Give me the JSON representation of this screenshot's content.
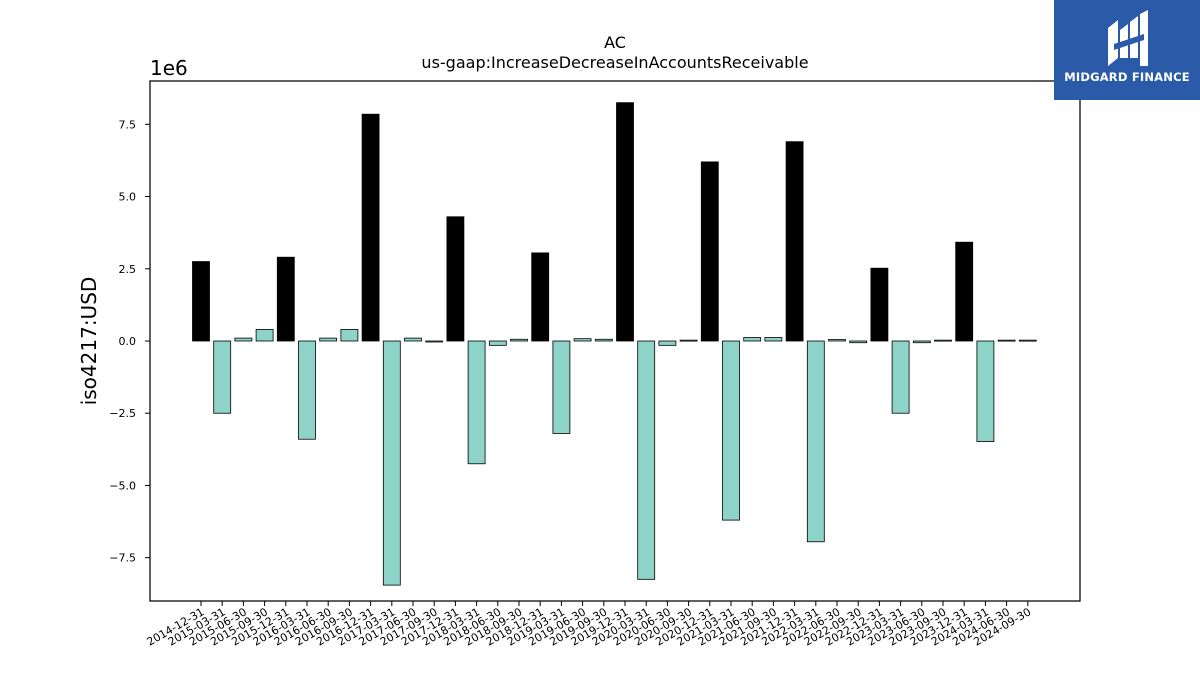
{
  "brand": {
    "logo_text": "MIDGARD FINANCE",
    "logo_icon": "midgard-m-mark",
    "background_color": "#2b5aa8"
  },
  "chart_data": {
    "type": "bar",
    "title": "AC",
    "subtitle": "us-gaap:IncreaseDecreaseInAccountsReceivable",
    "ylabel": "iso4217:USD",
    "xlabel": "",
    "scale_label": "1e6",
    "ylim": [
      -9000000,
      9000000
    ],
    "yticks": [
      -7500000,
      -5000000,
      -2500000,
      0,
      2500000,
      5000000,
      7500000
    ],
    "ytick_labels": [
      "−7.5",
      "−5.0",
      "−2.5",
      "0.0",
      "2.5",
      "5.0",
      "7.5"
    ],
    "grid": false,
    "legend": "none",
    "colors": {
      "positive_q4": "#000000",
      "other": "#8dd3c7",
      "edge": "#000000"
    },
    "categories": [
      "2014-12-31",
      "2015-03-31",
      "2015-06-30",
      "2015-09-30",
      "2015-12-31",
      "2016-03-31",
      "2016-06-30",
      "2016-09-30",
      "2016-12-31",
      "2017-03-31",
      "2017-06-30",
      "2017-09-30",
      "2017-12-31",
      "2018-03-31",
      "2018-06-30",
      "2018-09-30",
      "2018-12-31",
      "2019-03-31",
      "2019-06-30",
      "2019-09-30",
      "2019-12-31",
      "2020-03-31",
      "2020-06-30",
      "2020-09-30",
      "2020-12-31",
      "2021-03-31",
      "2021-06-30",
      "2021-09-30",
      "2021-12-31",
      "2022-03-31",
      "2022-06-30",
      "2022-09-30",
      "2022-12-31",
      "2023-03-31",
      "2023-06-30",
      "2023-09-30",
      "2023-12-31",
      "2024-03-31",
      "2024-06-30",
      "2024-09-30"
    ],
    "values": [
      2750000,
      -2500000,
      100000,
      400000,
      2900000,
      -3400000,
      100000,
      400000,
      7850000,
      -8450000,
      100000,
      -30000,
      4300000,
      -4250000,
      -150000,
      60000,
      3050000,
      -3200000,
      80000,
      60000,
      8250000,
      -8250000,
      -150000,
      30000,
      6200000,
      -6200000,
      120000,
      120000,
      6900000,
      -6950000,
      50000,
      -60000,
      2520000,
      -2500000,
      -60000,
      30000,
      3420000,
      -3480000,
      30000,
      30000
    ]
  }
}
